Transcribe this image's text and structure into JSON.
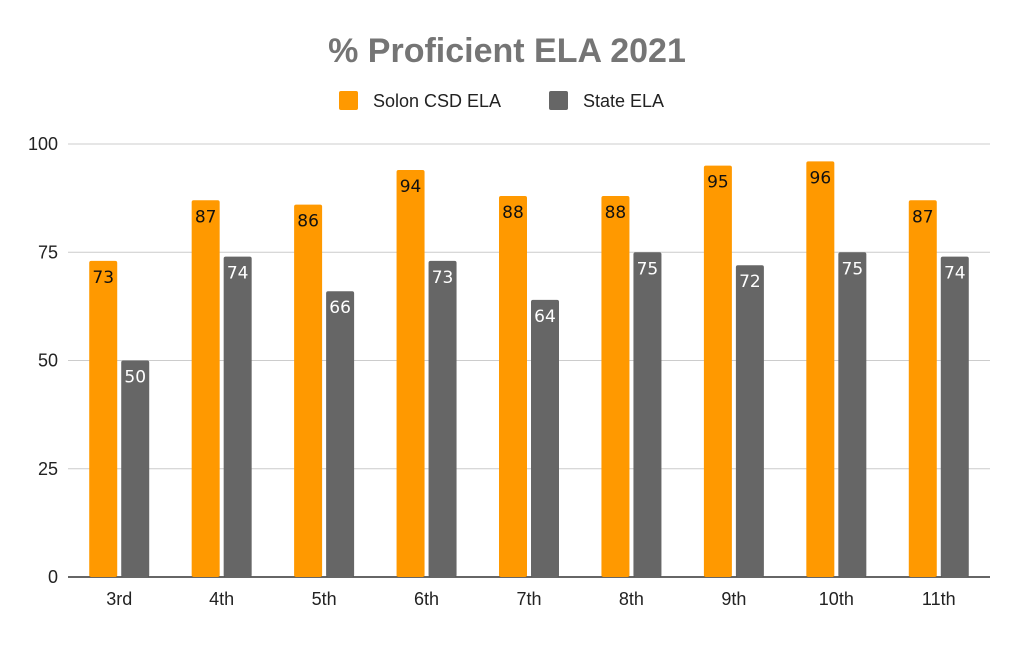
{
  "chart_data": {
    "type": "bar",
    "title": "% Proficient ELA 2021",
    "categories": [
      "3rd",
      "4th",
      "5th",
      "6th",
      "7th",
      "8th",
      "9th",
      "10th",
      "11th"
    ],
    "series": [
      {
        "name": "Solon CSD ELA",
        "color": "#ff9900",
        "label_color": "#111111",
        "values": [
          73,
          87,
          86,
          94,
          88,
          88,
          95,
          96,
          87
        ]
      },
      {
        "name": "State ELA",
        "color": "#666666",
        "label_color": "#ffffff",
        "values": [
          50,
          74,
          66,
          73,
          64,
          75,
          72,
          75,
          74
        ]
      }
    ],
    "ylim": [
      0,
      100
    ],
    "yticks": [
      0,
      25,
      50,
      75,
      100
    ],
    "grid": true,
    "legend_position": "top-center",
    "data_labels": true
  }
}
